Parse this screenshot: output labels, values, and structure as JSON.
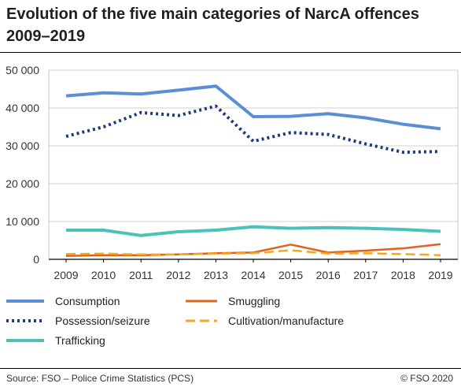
{
  "title": "Evolution of the five main categories of NarcA offences 2009–2019",
  "source": "Source: FSO – Police Crime Statistics (PCS)",
  "copyright": "© FSO 2020",
  "chart_data": {
    "type": "line",
    "title": "Evolution of the five main categories of NarcA offences 2009–2019",
    "xlabel": "",
    "ylabel": "",
    "x": [
      2009,
      2010,
      2011,
      2012,
      2013,
      2014,
      2015,
      2016,
      2017,
      2018,
      2019
    ],
    "y_ticks": [
      0,
      10000,
      20000,
      30000,
      40000,
      50000
    ],
    "y_tick_labels": [
      "0",
      "10 000",
      "20 000",
      "30 000",
      "40 000",
      "50 000"
    ],
    "ylim": [
      0,
      50000
    ],
    "grid": true,
    "legend_position": "bottom",
    "series": [
      {
        "name": "Consumption",
        "color": "#5b8fd4",
        "style": "solid",
        "values": [
          43200,
          44000,
          43700,
          44700,
          45800,
          37700,
          37800,
          38500,
          37400,
          35700,
          34500
        ]
      },
      {
        "name": "Possession/seizure",
        "color": "#1f3a7a",
        "style": "dotted",
        "values": [
          32500,
          35000,
          38800,
          38000,
          40500,
          31200,
          33500,
          33000,
          30500,
          28300,
          28500
        ]
      },
      {
        "name": "Trafficking",
        "color": "#4cc0b9",
        "style": "solid",
        "values": [
          7700,
          7700,
          6300,
          7300,
          7700,
          8600,
          8200,
          8400,
          8200,
          7900,
          7400
        ]
      },
      {
        "name": "Smuggling",
        "color": "#e0621b",
        "style": "solid",
        "values": [
          900,
          1100,
          1100,
          1300,
          1600,
          1800,
          3900,
          1800,
          2300,
          2900,
          4000
        ]
      },
      {
        "name": "Cultivation/manufacture",
        "color": "#f5a623",
        "style": "dashed",
        "values": [
          1400,
          1500,
          1300,
          1300,
          1500,
          1600,
          2400,
          1500,
          1600,
          1400,
          1100
        ]
      }
    ]
  }
}
